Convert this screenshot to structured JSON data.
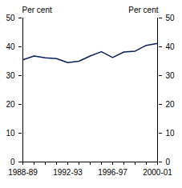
{
  "chart_data": {
    "type": "line",
    "y_label": "Per cent",
    "y2_label": "Per cent",
    "categories": [
      "1988-89",
      null,
      null,
      null,
      "1992-93",
      null,
      null,
      null,
      "1996-97",
      null,
      null,
      null,
      "2000-01"
    ],
    "values": [
      35.5,
      36.8,
      36.2,
      35.9,
      34.5,
      35.0,
      36.8,
      38.3,
      36.3,
      38.2,
      38.5,
      40.5,
      41.2
    ],
    "color": "#0b1f5c",
    "ylim": [
      0,
      50
    ],
    "yticks": [
      0,
      10,
      20,
      30,
      40,
      50
    ],
    "y2lim": [
      0,
      50
    ],
    "y2ticks": [
      0,
      10,
      20,
      30,
      40,
      50
    ],
    "grid": false
  }
}
